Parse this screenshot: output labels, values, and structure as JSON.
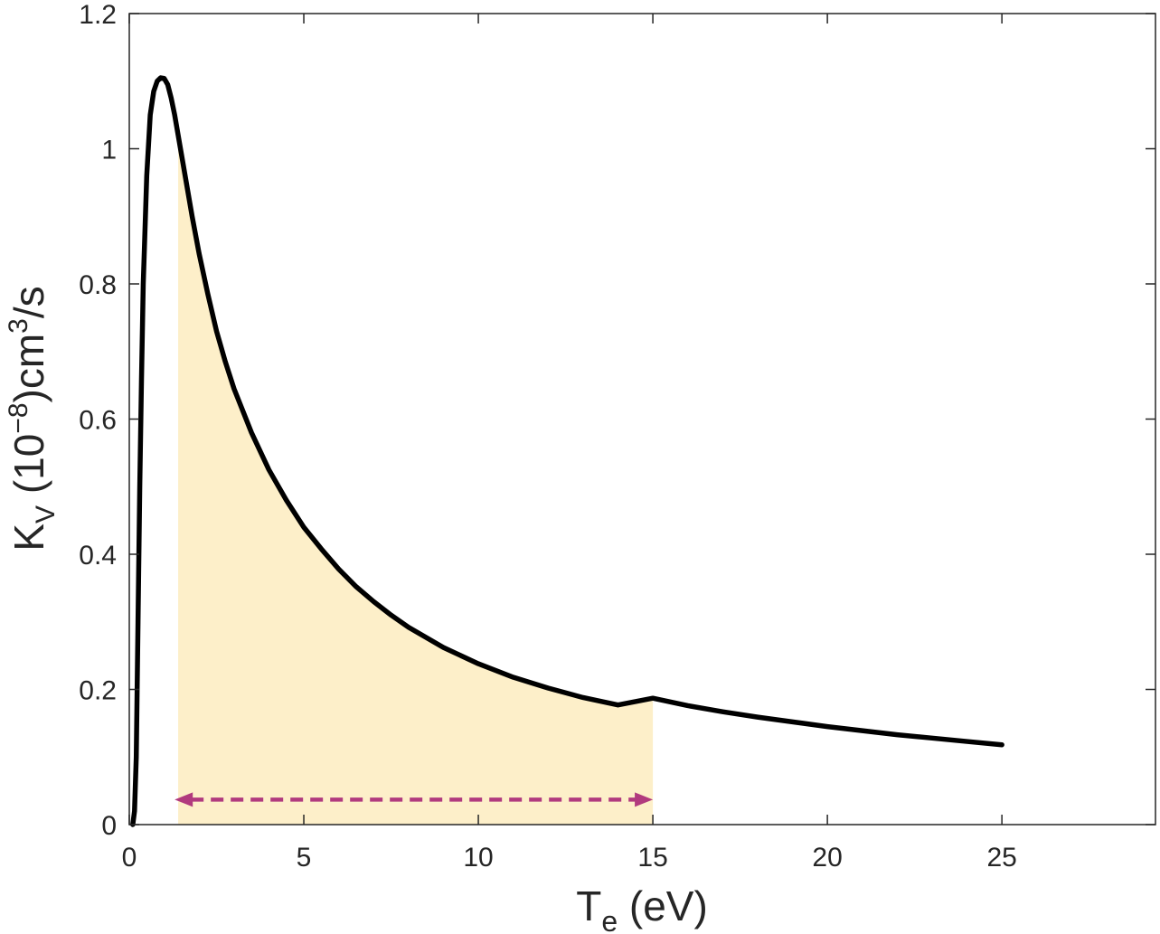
{
  "chart_data": {
    "type": "line",
    "xlabel": {
      "main": "T",
      "sub": "e",
      "rest": " (eV)"
    },
    "ylabel": {
      "main": "K",
      "sub": "V",
      "part1": " (10",
      "sup1": "−8",
      "part2": ")cm",
      "sup2": "3",
      "part3": "/s"
    },
    "xlim": [
      0,
      29.4
    ],
    "ylim": [
      0,
      1.2
    ],
    "xticks": [
      0,
      5,
      10,
      15,
      20,
      25
    ],
    "xtick_labels": [
      "0",
      "5",
      "10",
      "15",
      "20",
      "25"
    ],
    "yticks": [
      0,
      0.2,
      0.4,
      0.6,
      0.8,
      1.0,
      1.2
    ],
    "ytick_labels": [
      "0",
      "0.2",
      "0.4",
      "0.6",
      "0.8",
      "1",
      "1.2"
    ],
    "grid": false,
    "series": [
      {
        "color": "#000000",
        "x": [
          0.1,
          0.15,
          0.2,
          0.25,
          0.3,
          0.35,
          0.4,
          0.5,
          0.6,
          0.7,
          0.8,
          0.9,
          1.0,
          1.1,
          1.2,
          1.3,
          1.4,
          1.6,
          1.8,
          2.0,
          2.25,
          2.5,
          2.75,
          3.0,
          3.5,
          4.0,
          4.5,
          5.0,
          5.5,
          6.0,
          6.5,
          7.0,
          7.5,
          8.0,
          9.0,
          10.0,
          11.0,
          12.0,
          13.0,
          14.0,
          15.0,
          16.0,
          17.0,
          18.0,
          19.0,
          20.0,
          21.0,
          22.0,
          23.0,
          24.0,
          25.0
        ],
        "y": [
          0.0,
          0.02,
          0.1,
          0.3,
          0.5,
          0.66,
          0.8,
          0.96,
          1.05,
          1.085,
          1.1,
          1.105,
          1.104,
          1.095,
          1.075,
          1.05,
          1.02,
          0.96,
          0.9,
          0.845,
          0.785,
          0.73,
          0.685,
          0.645,
          0.58,
          0.525,
          0.48,
          0.44,
          0.408,
          0.378,
          0.352,
          0.33,
          0.31,
          0.292,
          0.262,
          0.238,
          0.218,
          0.202,
          0.188,
          0.177,
          0.187,
          0.176,
          0.167,
          0.159,
          0.152,
          0.145,
          0.139,
          0.133,
          0.128,
          0.123,
          0.118
        ]
      }
    ],
    "shaded_region": {
      "x_from": 1.4,
      "x_to": 15.0,
      "color": "#fdefc9"
    },
    "annotation_arrow": {
      "x_from": 1.3,
      "x_to": 15.0,
      "y": 0.037,
      "color": "#b13a7e",
      "style": "dashed",
      "heads": "both"
    }
  }
}
